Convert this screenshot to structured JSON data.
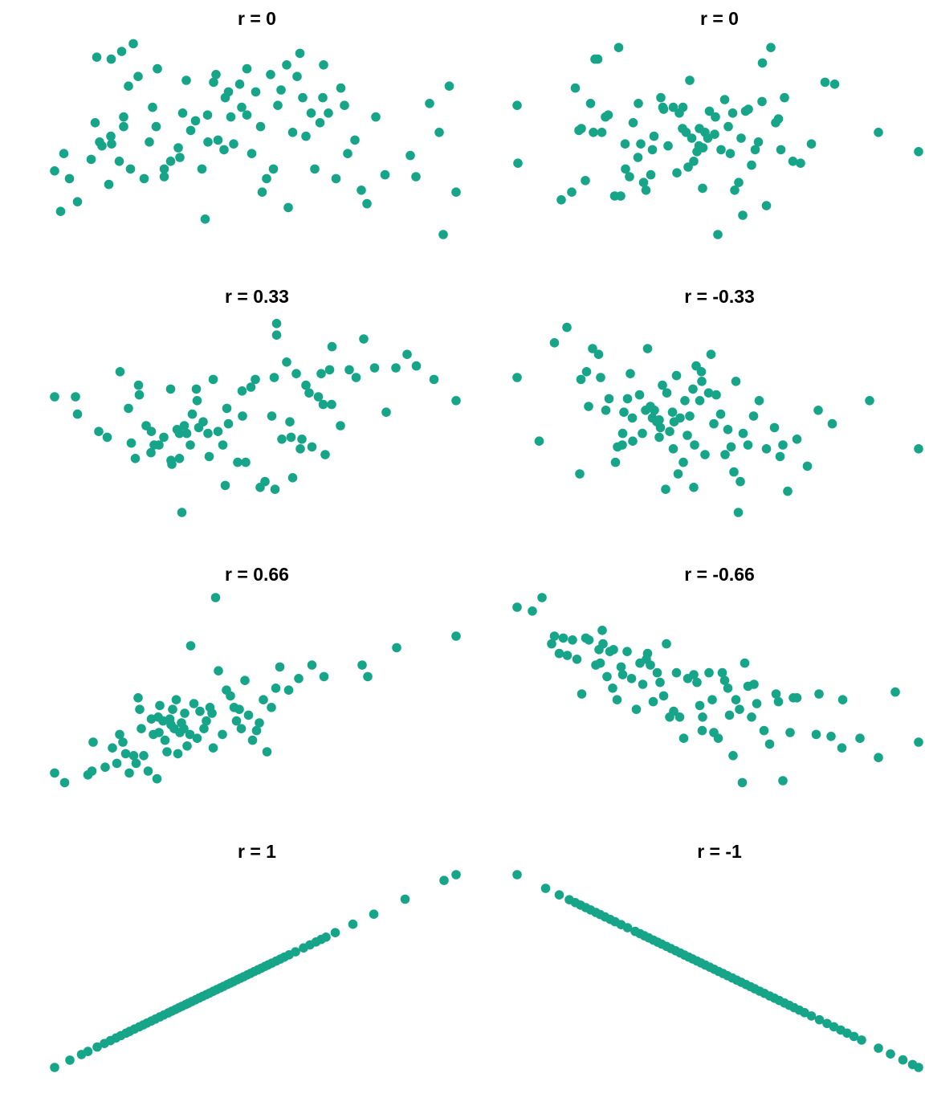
{
  "style": {
    "point_color": "#16A589",
    "background": "#ffffff",
    "title_color": "#000000"
  },
  "chart_data": [
    {
      "type": "scatter",
      "title": "r = 0",
      "x": [
        0.0,
        0.015,
        0.023,
        0.037,
        0.057,
        0.091,
        0.101,
        0.105,
        0.112,
        0.118,
        0.135,
        0.14,
        0.142,
        0.161,
        0.167,
        0.172,
        0.184,
        0.189,
        0.196,
        0.208,
        0.223,
        0.236,
        0.244,
        0.256,
        0.273,
        0.289,
        0.308,
        0.312,
        0.319,
        0.328,
        0.339,
        0.351,
        0.367,
        0.375,
        0.381,
        0.396,
        0.407,
        0.422,
        0.425,
        0.433,
        0.439,
        0.446,
        0.461,
        0.466,
        0.479,
        0.491,
        0.501,
        0.513,
        0.528,
        0.538,
        0.545,
        0.556,
        0.564,
        0.578,
        0.582,
        0.593,
        0.604,
        0.618,
        0.626,
        0.639,
        0.648,
        0.661,
        0.67,
        0.682,
        0.701,
        0.713,
        0.722,
        0.748,
        0.764,
        0.778,
        0.8,
        0.823,
        0.886,
        0.9,
        0.934,
        0.958,
        0.968,
        0.983,
        1.0,
        0.172,
        0.382,
        0.253,
        0.479,
        0.668,
        0.611,
        0.517,
        0.273,
        0.402,
        0.141,
        0.73
      ],
      "y": [
        0.33,
        0.12,
        0.42,
        0.29,
        0.17,
        0.39,
        0.58,
        0.92,
        0.48,
        0.46,
        0.26,
        0.51,
        0.47,
        0.38,
        0.95,
        0.56,
        0.77,
        0.34,
        0.99,
        0.82,
        0.29,
        0.48,
        0.66,
        0.86,
        0.3,
        0.38,
        0.45,
        0.4,
        0.63,
        0.8,
        0.54,
        0.59,
        0.34,
        0.08,
        0.62,
        0.79,
        0.49,
        0.44,
        0.71,
        0.74,
        0.61,
        0.47,
        0.78,
        0.66,
        0.86,
        0.42,
        0.74,
        0.56,
        0.29,
        0.83,
        0.34,
        0.67,
        0.75,
        0.88,
        0.14,
        0.53,
        0.82,
        0.71,
        0.51,
        0.63,
        0.34,
        0.58,
        0.88,
        0.63,
        0.29,
        0.76,
        0.67,
        0.49,
        0.23,
        0.16,
        0.61,
        0.31,
        0.41,
        0.3,
        0.68,
        0.53,
        0.0,
        0.77,
        0.22,
        0.61,
        0.48,
        0.56,
        0.62,
        0.71,
        0.94,
        0.22,
        0.34,
        0.83,
        0.91,
        0.42
      ],
      "xlim": [
        0,
        1
      ],
      "ylim": [
        0,
        1
      ]
    },
    {
      "type": "scatter",
      "title": "r = 0",
      "x": [
        0.0,
        0.002,
        0.11,
        0.136,
        0.145,
        0.154,
        0.16,
        0.183,
        0.19,
        0.194,
        0.201,
        0.211,
        0.227,
        0.243,
        0.253,
        0.269,
        0.27,
        0.28,
        0.289,
        0.301,
        0.308,
        0.315,
        0.321,
        0.333,
        0.337,
        0.341,
        0.358,
        0.365,
        0.376,
        0.389,
        0.398,
        0.404,
        0.413,
        0.421,
        0.426,
        0.43,
        0.435,
        0.44,
        0.448,
        0.454,
        0.462,
        0.468,
        0.475,
        0.479,
        0.492,
        0.5,
        0.508,
        0.517,
        0.526,
        0.531,
        0.542,
        0.552,
        0.558,
        0.569,
        0.576,
        0.584,
        0.593,
        0.601,
        0.61,
        0.621,
        0.632,
        0.644,
        0.657,
        0.666,
        0.687,
        0.706,
        0.733,
        0.767,
        0.791,
        0.9,
        1.0,
        0.258,
        0.463,
        0.412,
        0.22,
        0.537,
        0.363,
        0.17,
        0.651,
        0.611,
        0.494,
        0.302,
        0.453,
        0.562
      ],
      "y": [
        0.67,
        0.37,
        0.18,
        0.22,
        0.76,
        0.54,
        0.55,
        0.68,
        0.53,
        0.91,
        0.91,
        0.53,
        0.62,
        0.2,
        0.97,
        0.47,
        0.34,
        0.3,
        0.58,
        0.4,
        0.47,
        0.27,
        0.23,
        0.31,
        0.44,
        0.51,
        0.71,
        0.65,
        0.46,
        0.66,
        0.32,
        0.63,
        0.66,
        0.53,
        0.35,
        0.8,
        0.5,
        0.38,
        0.43,
        0.55,
        0.24,
        0.53,
        0.5,
        0.64,
        0.52,
        0.0,
        0.44,
        0.7,
        0.56,
        0.42,
        0.23,
        0.27,
        0.5,
        0.64,
        0.65,
        0.36,
        0.44,
        0.48,
        0.69,
        0.15,
        0.97,
        0.58,
        0.44,
        0.71,
        0.38,
        0.37,
        0.47,
        0.79,
        0.78,
        0.53,
        0.43,
        0.2,
        0.45,
        0.55,
        0.61,
        0.63,
        0.66,
        0.28,
        0.6,
        0.89,
        0.61,
        0.68,
        0.46,
        0.1
      ],
      "xlim": [
        0,
        1
      ],
      "ylim": [
        0,
        1
      ]
    },
    {
      "type": "scatter",
      "title": "r = 0.33",
      "x": [
        0.0,
        0.052,
        0.057,
        0.11,
        0.131,
        0.163,
        0.191,
        0.201,
        0.209,
        0.211,
        0.228,
        0.24,
        0.26,
        0.272,
        0.289,
        0.292,
        0.305,
        0.311,
        0.317,
        0.323,
        0.329,
        0.338,
        0.343,
        0.355,
        0.359,
        0.37,
        0.382,
        0.385,
        0.395,
        0.407,
        0.419,
        0.429,
        0.433,
        0.456,
        0.467,
        0.476,
        0.489,
        0.5,
        0.524,
        0.541,
        0.547,
        0.549,
        0.553,
        0.566,
        0.578,
        0.586,
        0.589,
        0.593,
        0.602,
        0.612,
        0.626,
        0.634,
        0.641,
        0.657,
        0.664,
        0.669,
        0.674,
        0.685,
        0.691,
        0.712,
        0.734,
        0.751,
        0.77,
        0.797,
        0.826,
        0.85,
        0.878,
        0.901,
        0.945,
        1.0,
        0.241,
        0.311,
        0.468,
        0.553,
        0.616,
        0.29,
        0.353,
        0.425,
        0.184,
        0.69,
        0.512,
        0.248
      ],
      "y": [
        0.6,
        0.6,
        0.51,
        0.42,
        0.39,
        0.73,
        0.36,
        0.28,
        0.66,
        0.61,
        0.45,
        0.31,
        0.35,
        0.39,
        0.64,
        0.25,
        0.43,
        0.28,
        0.0,
        0.45,
        0.41,
        0.35,
        0.51,
        0.58,
        0.44,
        0.47,
        0.41,
        0.29,
        0.69,
        0.42,
        0.35,
        0.54,
        0.46,
        0.26,
        0.63,
        0.26,
        0.65,
        0.69,
        0.16,
        0.5,
        0.7,
        0.12,
        0.98,
        0.38,
        0.78,
        0.47,
        0.39,
        0.18,
        0.72,
        0.33,
        0.66,
        0.62,
        0.34,
        0.6,
        0.72,
        0.56,
        0.3,
        0.74,
        0.86,
        0.45,
        0.74,
        0.7,
        0.9,
        0.75,
        0.52,
        0.75,
        0.82,
        0.76,
        0.69,
        0.58,
        0.42,
        0.41,
        0.5,
        0.92,
        0.38,
        0.27,
        0.64,
        0.14,
        0.54,
        0.56,
        0.13,
        0.35
      ],
      "xlim": [
        0,
        1
      ],
      "ylim": [
        0,
        1
      ]
    },
    {
      "type": "scatter",
      "title": "r = -0.33",
      "x": [
        0.0,
        0.055,
        0.093,
        0.124,
        0.156,
        0.159,
        0.173,
        0.178,
        0.188,
        0.208,
        0.221,
        0.229,
        0.245,
        0.25,
        0.263,
        0.266,
        0.275,
        0.282,
        0.287,
        0.305,
        0.312,
        0.32,
        0.325,
        0.332,
        0.337,
        0.348,
        0.354,
        0.357,
        0.362,
        0.37,
        0.373,
        0.38,
        0.387,
        0.391,
        0.397,
        0.406,
        0.414,
        0.418,
        0.424,
        0.43,
        0.438,
        0.442,
        0.446,
        0.455,
        0.46,
        0.468,
        0.477,
        0.483,
        0.49,
        0.496,
        0.507,
        0.518,
        0.525,
        0.533,
        0.54,
        0.551,
        0.556,
        0.563,
        0.575,
        0.589,
        0.603,
        0.621,
        0.641,
        0.655,
        0.662,
        0.674,
        0.697,
        0.723,
        0.75,
        0.785,
        0.878,
        1.0,
        0.401,
        0.354,
        0.203,
        0.459,
        0.262,
        0.545,
        0.44,
        0.288,
        0.389,
        0.342
      ],
      "y": [
        0.7,
        0.37,
        0.88,
        0.96,
        0.2,
        0.69,
        0.73,
        0.55,
        0.85,
        0.7,
        0.53,
        0.59,
        0.26,
        0.34,
        0.41,
        0.52,
        0.59,
        0.72,
        0.49,
        0.61,
        0.41,
        0.53,
        0.85,
        0.55,
        0.49,
        0.47,
        0.39,
        0.44,
        0.66,
        0.12,
        0.62,
        0.42,
        0.52,
        0.47,
        0.71,
        0.49,
        0.26,
        0.58,
        0.4,
        0.5,
        0.64,
        0.35,
        0.76,
        0.58,
        0.68,
        0.3,
        0.62,
        0.82,
        0.46,
        0.61,
        0.51,
        0.3,
        0.43,
        0.34,
        0.21,
        0.0,
        0.16,
        0.41,
        0.35,
        0.5,
        0.58,
        0.33,
        0.44,
        0.29,
        0.35,
        0.11,
        0.38,
        0.24,
        0.53,
        0.46,
        0.58,
        0.33,
        0.2,
        0.48,
        0.82,
        0.73,
        0.35,
        0.68,
        0.13,
        0.37,
        0.33,
        0.53
      ],
      "xlim": [
        0,
        1
      ],
      "ylim": [
        0,
        1
      ]
    },
    {
      "type": "scatter",
      "title": "r = 0.66",
      "x": [
        0.0,
        0.025,
        0.083,
        0.093,
        0.096,
        0.126,
        0.144,
        0.155,
        0.162,
        0.17,
        0.177,
        0.186,
        0.197,
        0.203,
        0.212,
        0.216,
        0.222,
        0.233,
        0.241,
        0.246,
        0.255,
        0.26,
        0.262,
        0.27,
        0.275,
        0.28,
        0.287,
        0.29,
        0.294,
        0.298,
        0.303,
        0.307,
        0.312,
        0.316,
        0.324,
        0.33,
        0.339,
        0.347,
        0.355,
        0.362,
        0.372,
        0.378,
        0.387,
        0.395,
        0.401,
        0.408,
        0.418,
        0.428,
        0.438,
        0.447,
        0.453,
        0.465,
        0.474,
        0.483,
        0.493,
        0.503,
        0.51,
        0.52,
        0.529,
        0.54,
        0.551,
        0.561,
        0.583,
        0.608,
        0.641,
        0.671,
        0.766,
        0.78,
        0.852,
        1.0,
        0.392,
        0.322,
        0.208,
        0.46,
        0.258,
        0.337
      ],
      "y": [
        0.09,
        0.04,
        0.08,
        0.1,
        0.25,
        0.12,
        0.22,
        0.14,
        0.29,
        0.25,
        0.19,
        0.09,
        0.18,
        0.14,
        0.42,
        0.32,
        0.18,
        0.1,
        0.37,
        0.29,
        0.06,
        0.3,
        0.44,
        0.36,
        0.26,
        0.2,
        0.37,
        0.34,
        0.42,
        0.32,
        0.47,
        0.19,
        0.3,
        0.35,
        0.4,
        0.23,
        0.75,
        0.45,
        0.27,
        0.41,
        0.32,
        0.36,
        0.43,
        0.22,
        1.0,
        0.62,
        0.29,
        0.52,
        0.49,
        0.43,
        0.36,
        0.32,
        0.57,
        0.39,
        0.26,
        0.31,
        0.35,
        0.47,
        0.2,
        0.43,
        0.53,
        0.64,
        0.52,
        0.58,
        0.65,
        0.59,
        0.65,
        0.59,
        0.74,
        0.8,
        0.4,
        0.32,
        0.48,
        0.42,
        0.38,
        0.29
      ],
      "xlim": [
        0,
        1
      ],
      "ylim": [
        0,
        1
      ]
    },
    {
      "type": "scatter",
      "title": "r = -0.66",
      "x": [
        0.0,
        0.038,
        0.062,
        0.086,
        0.093,
        0.105,
        0.115,
        0.125,
        0.138,
        0.149,
        0.161,
        0.171,
        0.179,
        0.196,
        0.204,
        0.207,
        0.214,
        0.224,
        0.231,
        0.238,
        0.24,
        0.249,
        0.263,
        0.274,
        0.285,
        0.297,
        0.306,
        0.313,
        0.325,
        0.332,
        0.339,
        0.349,
        0.356,
        0.365,
        0.38,
        0.39,
        0.397,
        0.405,
        0.415,
        0.425,
        0.44,
        0.448,
        0.455,
        0.461,
        0.478,
        0.486,
        0.49,
        0.501,
        0.511,
        0.517,
        0.529,
        0.538,
        0.545,
        0.554,
        0.561,
        0.575,
        0.584,
        0.59,
        0.597,
        0.615,
        0.629,
        0.645,
        0.651,
        0.662,
        0.68,
        0.688,
        0.745,
        0.752,
        0.782,
        0.809,
        0.854,
        0.9,
        0.942,
        1.0,
        0.212,
        0.322,
        0.462,
        0.525,
        0.372,
        0.567,
        0.259,
        0.697,
        0.811
      ],
      "y": [
        0.95,
        0.93,
        1.0,
        0.76,
        0.8,
        0.71,
        0.79,
        0.7,
        0.78,
        0.68,
        0.5,
        0.79,
        0.78,
        0.65,
        0.73,
        0.66,
        0.76,
        0.59,
        0.72,
        0.53,
        0.73,
        0.47,
        0.6,
        0.72,
        0.58,
        0.42,
        0.66,
        0.55,
        0.71,
        0.65,
        0.46,
        0.61,
        0.56,
        0.49,
        0.38,
        0.41,
        0.61,
        0.38,
        0.27,
        0.58,
        0.6,
        0.56,
        0.44,
        0.31,
        0.61,
        0.47,
        0.3,
        0.27,
        0.61,
        0.57,
        0.39,
        0.18,
        0.47,
        0.42,
        0.04,
        0.54,
        0.38,
        0.55,
        0.45,
        0.31,
        0.24,
        0.5,
        0.46,
        0.05,
        0.3,
        0.48,
        0.29,
        0.5,
        0.28,
        0.22,
        0.27,
        0.17,
        0.51,
        0.25,
        0.83,
        0.68,
        0.38,
        0.53,
        0.76,
        0.66,
        0.64,
        0.48,
        0.47
      ],
      "xlim": [
        0,
        1
      ],
      "ylim": [
        0,
        1
      ]
    },
    {
      "type": "scatter",
      "title": "r = 1",
      "x": [
        0.0,
        0.038,
        0.067,
        0.083,
        0.106,
        0.124,
        0.139,
        0.153,
        0.165,
        0.178,
        0.187,
        0.199,
        0.211,
        0.221,
        0.23,
        0.241,
        0.251,
        0.262,
        0.272,
        0.283,
        0.292,
        0.301,
        0.309,
        0.317,
        0.326,
        0.333,
        0.342,
        0.351,
        0.36,
        0.369,
        0.378,
        0.386,
        0.395,
        0.404,
        0.413,
        0.421,
        0.43,
        0.438,
        0.446,
        0.455,
        0.463,
        0.471,
        0.48,
        0.488,
        0.497,
        0.506,
        0.515,
        0.524,
        0.532,
        0.541,
        0.552,
        0.562,
        0.572,
        0.584,
        0.6,
        0.62,
        0.636,
        0.651,
        0.664,
        0.676,
        0.699,
        0.743,
        0.795,
        0.873,
        0.97,
        1.0
      ],
      "y": [
        0.0,
        0.038,
        0.067,
        0.083,
        0.106,
        0.124,
        0.139,
        0.153,
        0.165,
        0.178,
        0.187,
        0.199,
        0.211,
        0.221,
        0.23,
        0.241,
        0.251,
        0.262,
        0.272,
        0.283,
        0.292,
        0.301,
        0.309,
        0.317,
        0.326,
        0.333,
        0.342,
        0.351,
        0.36,
        0.369,
        0.378,
        0.386,
        0.395,
        0.404,
        0.413,
        0.421,
        0.43,
        0.438,
        0.446,
        0.455,
        0.463,
        0.471,
        0.48,
        0.488,
        0.497,
        0.506,
        0.515,
        0.524,
        0.532,
        0.541,
        0.552,
        0.562,
        0.572,
        0.584,
        0.6,
        0.62,
        0.636,
        0.651,
        0.664,
        0.676,
        0.699,
        0.743,
        0.795,
        0.873,
        0.97,
        1.0
      ],
      "xlim": [
        0,
        1
      ],
      "ylim": [
        0,
        1
      ]
    },
    {
      "type": "scatter",
      "title": "r = -1",
      "x": [
        0.0,
        0.071,
        0.105,
        0.13,
        0.145,
        0.158,
        0.171,
        0.183,
        0.196,
        0.207,
        0.219,
        0.232,
        0.244,
        0.259,
        0.275,
        0.294,
        0.306,
        0.317,
        0.328,
        0.339,
        0.35,
        0.36,
        0.372,
        0.383,
        0.395,
        0.406,
        0.417,
        0.427,
        0.437,
        0.448,
        0.458,
        0.469,
        0.48,
        0.491,
        0.502,
        0.513,
        0.524,
        0.536,
        0.547,
        0.558,
        0.57,
        0.581,
        0.592,
        0.604,
        0.616,
        0.629,
        0.641,
        0.653,
        0.666,
        0.678,
        0.69,
        0.703,
        0.716,
        0.733,
        0.753,
        0.772,
        0.789,
        0.806,
        0.822,
        0.839,
        0.858,
        0.9,
        0.93,
        0.961,
        0.985,
        1.0
      ],
      "y": [
        1.0,
        0.929,
        0.895,
        0.87,
        0.855,
        0.842,
        0.829,
        0.817,
        0.804,
        0.793,
        0.781,
        0.768,
        0.756,
        0.741,
        0.725,
        0.706,
        0.694,
        0.683,
        0.672,
        0.661,
        0.65,
        0.64,
        0.628,
        0.617,
        0.605,
        0.594,
        0.583,
        0.573,
        0.563,
        0.552,
        0.542,
        0.531,
        0.52,
        0.509,
        0.498,
        0.487,
        0.476,
        0.464,
        0.453,
        0.442,
        0.43,
        0.419,
        0.408,
        0.396,
        0.384,
        0.371,
        0.359,
        0.347,
        0.334,
        0.322,
        0.31,
        0.297,
        0.284,
        0.267,
        0.247,
        0.228,
        0.211,
        0.194,
        0.178,
        0.161,
        0.142,
        0.1,
        0.07,
        0.039,
        0.015,
        0.0
      ],
      "xlim": [
        0,
        1
      ],
      "ylim": [
        0,
        1
      ]
    }
  ]
}
